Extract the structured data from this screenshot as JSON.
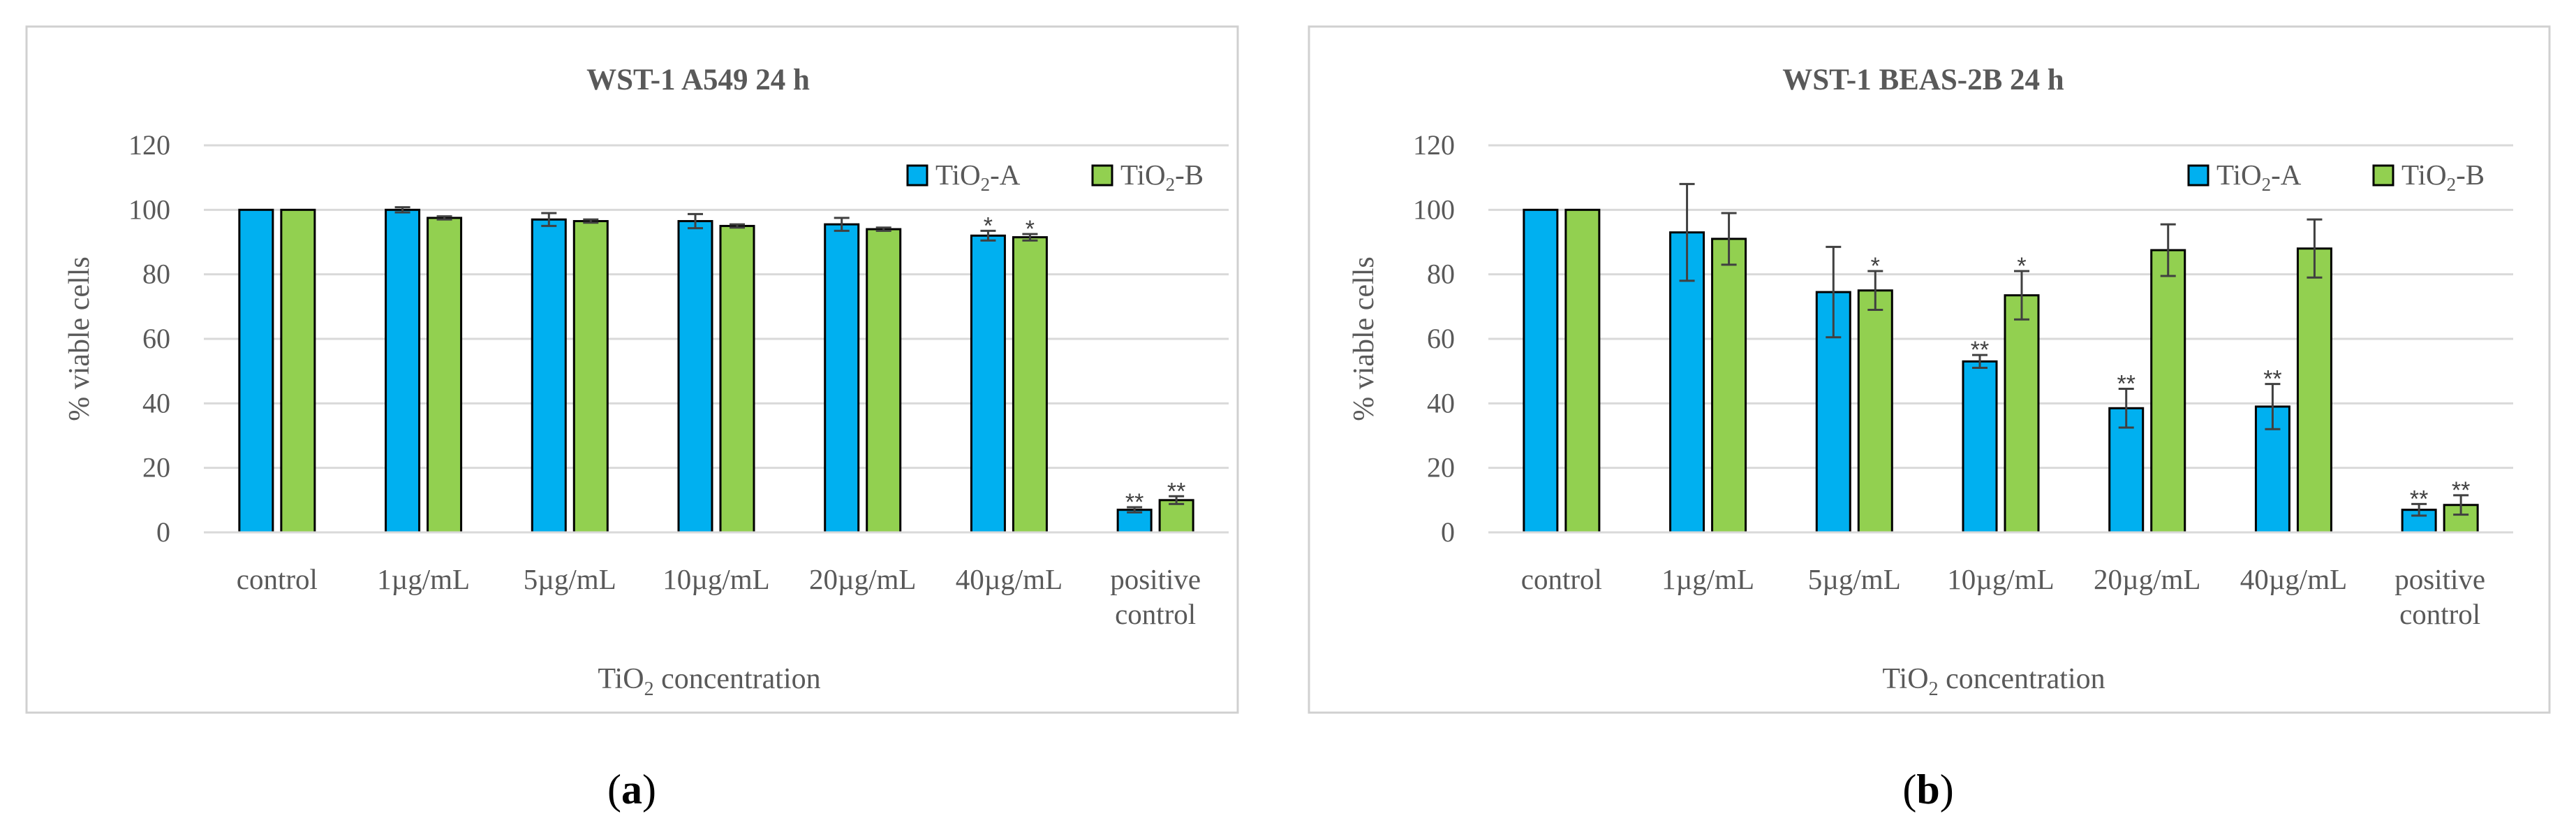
{
  "colors": {
    "A": "#00b0f0",
    "B": "#92d050",
    "grid": "#d9d9d9",
    "frame": "#d0d0d0",
    "text": "#595959"
  },
  "chart_data": [
    {
      "type": "bar",
      "panel_label": "a",
      "title": "WST-1 A549 24 h",
      "ylabel": "% viable cells",
      "xlabel_prefix": "TiO",
      "xlabel_sub": "2",
      "xlabel_suffix": " concentration",
      "ylim": [
        0,
        120
      ],
      "yticks": [
        0,
        20,
        40,
        60,
        80,
        100,
        120
      ],
      "categories": [
        [
          "control"
        ],
        [
          "1µg/mL"
        ],
        [
          "5µg/mL"
        ],
        [
          "10µg/mL"
        ],
        [
          "20µg/mL"
        ],
        [
          "40µg/mL"
        ],
        [
          "positive",
          "control"
        ]
      ],
      "legend_position": "top-right",
      "series": [
        {
          "name_prefix": "TiO",
          "name_sub": "2",
          "name_suffix": "-A",
          "values": [
            100,
            100,
            97,
            96.5,
            95.5,
            92,
            7
          ],
          "errors": [
            0,
            0.8,
            2,
            2.2,
            2,
            1.5,
            0.8
          ],
          "sig": [
            "",
            "",
            "",
            "",
            "",
            "*",
            "**"
          ]
        },
        {
          "name_prefix": "TiO",
          "name_sub": "2",
          "name_suffix": "-B",
          "values": [
            100,
            97.5,
            96.5,
            95,
            94,
            91.5,
            10
          ],
          "errors": [
            0,
            0.5,
            0.5,
            0.5,
            0.5,
            1,
            1.2
          ],
          "sig": [
            "",
            "",
            "",
            "",
            "",
            "*",
            "**"
          ]
        }
      ]
    },
    {
      "type": "bar",
      "panel_label": "b",
      "title": "WST-1 BEAS-2B 24 h",
      "ylabel": "% viable cells",
      "xlabel_prefix": "TiO",
      "xlabel_sub": "2",
      "xlabel_suffix": " concentration",
      "ylim": [
        0,
        120
      ],
      "yticks": [
        0,
        20,
        40,
        60,
        80,
        100,
        120
      ],
      "categories": [
        [
          "control"
        ],
        [
          "1µg/mL"
        ],
        [
          "5µg/mL"
        ],
        [
          "10µg/mL"
        ],
        [
          "20µg/mL"
        ],
        [
          "40µg/mL"
        ],
        [
          "positive",
          "control"
        ]
      ],
      "legend_position": "top-right",
      "series": [
        {
          "name_prefix": "TiO",
          "name_sub": "2",
          "name_suffix": "-A",
          "values": [
            100,
            93,
            74.5,
            53,
            38.5,
            39,
            7
          ],
          "errors": [
            0,
            15,
            14,
            2,
            6,
            7,
            1.8
          ],
          "sig": [
            "",
            "",
            "",
            "**",
            "**",
            "**",
            "**"
          ]
        },
        {
          "name_prefix": "TiO",
          "name_sub": "2",
          "name_suffix": "-B",
          "values": [
            100,
            91,
            75,
            73.5,
            87.5,
            88,
            8.5
          ],
          "errors": [
            0,
            8,
            6,
            7.5,
            8,
            9,
            3
          ],
          "sig": [
            "",
            "",
            "*",
            "*",
            "",
            "",
            "**"
          ]
        }
      ]
    }
  ]
}
